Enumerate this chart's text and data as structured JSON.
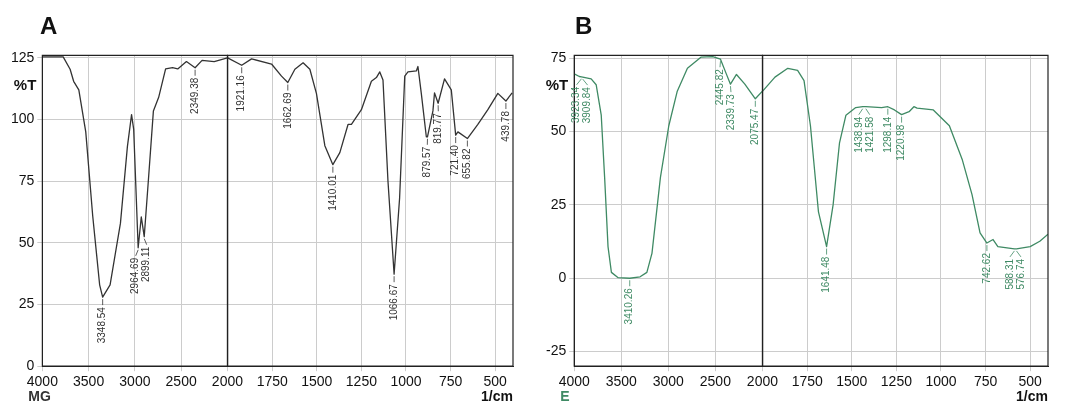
{
  "chart_data": [
    {
      "type": "line",
      "title": "A",
      "ylabel": "%T",
      "xlim": [
        4000,
        2000
      ],
      "ylim": [
        0,
        126
      ],
      "xticks": [
        4000,
        3500,
        3000,
        2500,
        2000
      ],
      "yticks": [
        0,
        25,
        50,
        75,
        100,
        125
      ],
      "grid": true,
      "legend": false,
      "marker": "none",
      "series": [
        {
          "color": "#333333",
          "x": [
            4000,
            3775,
            3700,
            3662,
            3606,
            3531,
            3456,
            3381,
            3348.54,
            3268,
            3156,
            3081,
            3036,
            3013,
            2964.69,
            2931,
            2899.11,
            2855,
            2800,
            2743,
            2668,
            2593,
            2537,
            2443,
            2349.38,
            2274,
            2143,
            2000
          ],
          "values": [
            125.4,
            125.4,
            120.4,
            115.5,
            112,
            95,
            61,
            33,
            28,
            33,
            58,
            89,
            102,
            96,
            48,
            60.5,
            52.5,
            75,
            103.5,
            109,
            120.5,
            121,
            120.5,
            123.5,
            121,
            124,
            123.5,
            125
          ]
        }
      ],
      "annotations": [
        "MG",
        {
          "text": "3348.54",
          "x": 3348.54,
          "y": 28
        },
        {
          "text": "2964.69",
          "x": 2964.69,
          "y": 48
        },
        {
          "text": "2899.11",
          "x": 2899.11,
          "y": 52.5
        },
        {
          "text": "2349.38",
          "x": 2349.38,
          "y": 121
        }
      ]
    },
    {
      "type": "line",
      "xlabel": "1/cm",
      "xlim": [
        2000,
        400
      ],
      "ylim": [
        0,
        126
      ],
      "xticks": [
        1750,
        1500,
        1250,
        1000,
        750,
        500
      ],
      "yticks": [
        0,
        25,
        50,
        75,
        100,
        125
      ],
      "grid": true,
      "legend": false,
      "marker": "none",
      "tick_labels": "x",
      "series": [
        {
          "color": "#333333",
          "x": [
            2000,
            1921.16,
            1866,
            1754,
            1698,
            1662.69,
            1623,
            1577,
            1539,
            1502,
            1455,
            1410.01,
            1371,
            1325,
            1306,
            1250,
            1194,
            1166,
            1147,
            1129,
            1101,
            1066.67,
            1036,
            1007,
            989,
            942,
            933,
            914,
            886,
            879.57,
            849,
            840,
            819.77,
            784,
            746,
            721.4,
            709,
            655.82,
            597,
            541,
            485,
            439.78,
            405
          ],
          "values": [
            125,
            122,
            124.6,
            122.5,
            117.6,
            115,
            120.4,
            123,
            120.4,
            110.5,
            89.4,
            81.7,
            86.6,
            98,
            98,
            104,
            115.5,
            117,
            119.3,
            116,
            75,
            37.3,
            68,
            117.6,
            119.3,
            119.7,
            121.5,
            110.5,
            93,
            93,
            103.5,
            110.8,
            106.6,
            116.5,
            112,
            93.7,
            95,
            92.3,
            98,
            104,
            110.6,
            107.5,
            110.8
          ]
        }
      ],
      "annotations": [
        {
          "text": "1921.16",
          "x": 1921.16,
          "y": 122
        },
        {
          "text": "1662.69",
          "x": 1662.69,
          "y": 115
        },
        {
          "text": "1410.01",
          "x": 1410.01,
          "y": 81.7
        },
        {
          "text": "1066.67",
          "x": 1066.67,
          "y": 37.3
        },
        {
          "text": "879.57",
          "x": 879.57,
          "y": 93
        },
        {
          "text": "819.77",
          "x": 819.77,
          "y": 106.6
        },
        {
          "text": "721.40",
          "x": 721.4,
          "y": 93.7
        },
        {
          "text": "655.82",
          "x": 655.82,
          "y": 92.3
        },
        {
          "text": "439.78",
          "x": 439.78,
          "y": 107.5
        }
      ]
    },
    {
      "type": "line",
      "title": "B",
      "ylabel": "%T",
      "xlim": [
        4000,
        2000
      ],
      "ylim": [
        -30,
        76
      ],
      "xticks": [
        4000,
        3500,
        3000,
        2500,
        2000
      ],
      "yticks": [
        -25,
        0,
        25,
        50,
        75
      ],
      "grid": true,
      "legend": false,
      "marker": "none",
      "series": [
        {
          "color": "#3f8a64",
          "x": [
            4000,
            3946,
            3923.34,
            3909.84,
            3820,
            3767,
            3713,
            3677,
            3641,
            3605,
            3533,
            3410.26,
            3300,
            3228,
            3174,
            3084,
            2995,
            2905,
            2797,
            2654,
            2528,
            2445.82,
            2384,
            2339.73,
            2276,
            2187,
            2075.47,
            2000
          ],
          "values": [
            69.7,
            68.8,
            68.7,
            68.6,
            68,
            66,
            55.6,
            34.4,
            10.8,
            2,
            0.2,
            0,
            0.5,
            2,
            8.5,
            34.4,
            52,
            63.8,
            71.6,
            75.4,
            75.6,
            74.7,
            69.7,
            66.2,
            69.5,
            66.2,
            61.2,
            63.8
          ]
        }
      ],
      "annotations": [
        "E",
        {
          "text": "3923.34",
          "x": 3923.34,
          "y": 68.7
        },
        {
          "text": "3909.84",
          "x": 3909.84,
          "y": 68.6
        },
        {
          "text": "3410.26",
          "x": 3410.26,
          "y": 0
        },
        {
          "text": "2445.82",
          "x": 2445.82,
          "y": 74.7
        },
        {
          "text": "2339.73",
          "x": 2339.73,
          "y": 66.2
        },
        {
          "text": "2075.47",
          "x": 2075.47,
          "y": 61.2
        }
      ]
    },
    {
      "type": "line",
      "xlabel": "1/cm",
      "xlim": [
        2000,
        400
      ],
      "ylim": [
        -30,
        76
      ],
      "xticks": [
        1750,
        1500,
        1250,
        1000,
        750,
        500
      ],
      "yticks": [
        -25,
        0,
        25,
        50,
        75
      ],
      "grid": true,
      "legend": false,
      "marker": "none",
      "tick_labels": "x",
      "series": [
        {
          "color": "#3f8a64",
          "x": [
            2000,
            1931,
            1859,
            1804,
            1768,
            1732,
            1687,
            1641.48,
            1605,
            1569,
            1533,
            1478,
            1438.94,
            1421.58,
            1333,
            1298.14,
            1261,
            1220.98,
            1179,
            1152,
            1134,
            1043,
            953,
            880,
            826,
            781,
            742.62,
            708,
            681,
            588.31,
            576.74,
            500,
            446,
            400
          ],
          "values": [
            63.8,
            68.6,
            71.6,
            70.9,
            67.4,
            52,
            22.6,
            10.8,
            25,
            46.2,
            55.6,
            58.2,
            58.5,
            58.5,
            58.2,
            58.5,
            57.4,
            55.8,
            56.8,
            58.5,
            58,
            57.4,
            52,
            40.3,
            28.5,
            15.5,
            12,
            13.2,
            10.8,
            10,
            10,
            10.8,
            12.6,
            15
          ]
        }
      ],
      "annotations": [
        {
          "text": "1641.48",
          "x": 1641.48,
          "y": 10.8
        },
        {
          "text": "1438.94",
          "x": 1438.94,
          "y": 58.5
        },
        {
          "text": "1421.58",
          "x": 1421.58,
          "y": 58.5
        },
        {
          "text": "1298.14",
          "x": 1298.14,
          "y": 58.5
        },
        {
          "text": "1220.98",
          "x": 1220.98,
          "y": 55.8
        },
        {
          "text": "742.62",
          "x": 742.62,
          "y": 12
        },
        {
          "text": "588.31",
          "x": 588.31,
          "y": 10
        },
        {
          "text": "576.74",
          "x": 576.74,
          "y": 10
        }
      ]
    }
  ]
}
